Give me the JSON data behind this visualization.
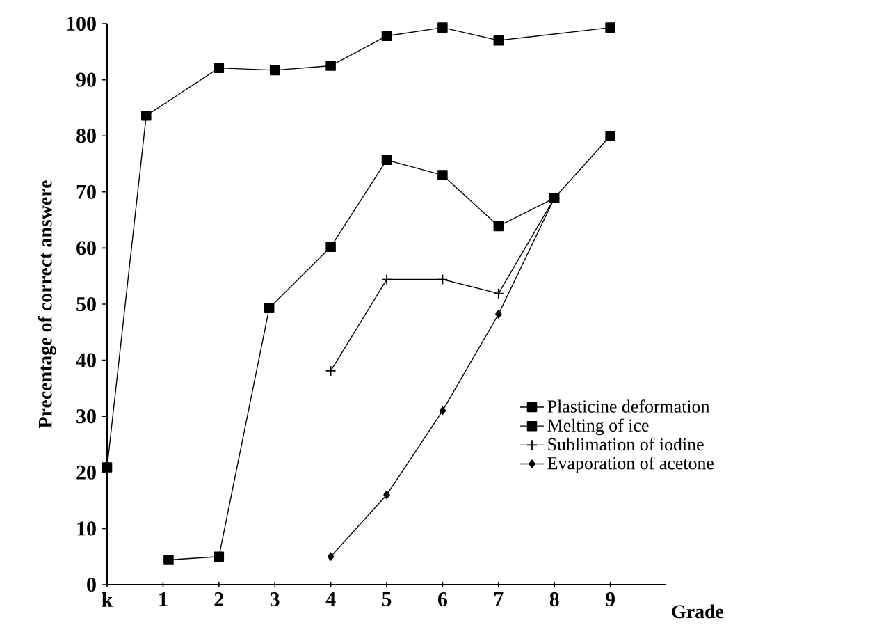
{
  "chart_data": {
    "type": "line",
    "xlabel": "Grade",
    "ylabel": "Precentage of correct answere",
    "xlim": [
      0,
      10
    ],
    "ylim": [
      0,
      100
    ],
    "xticks": [
      {
        "value": 0,
        "label": "k"
      },
      1,
      2,
      3,
      4,
      5,
      6,
      7,
      8,
      9
    ],
    "yticks": [
      0,
      10,
      20,
      30,
      40,
      50,
      60,
      70,
      80,
      90,
      100
    ],
    "legend": "right",
    "grid": false,
    "series": [
      {
        "name": "Plasticine deformation",
        "color": "#000000",
        "marker": "square",
        "x": [
          0,
          0.7,
          2,
          3,
          4,
          5,
          6,
          7,
          9
        ],
        "values": [
          20.9,
          83.6,
          92.1,
          91.7,
          92.5,
          97.8,
          99.3,
          97.0,
          99.3
        ]
      },
      {
        "name": "Melting of ice",
        "color": "#000000",
        "marker": "square",
        "x": [
          1.1,
          2,
          2.9,
          4,
          5,
          6,
          7,
          8,
          9
        ],
        "values": [
          4.4,
          5.0,
          49.3,
          60.2,
          75.7,
          73.0,
          63.9,
          68.9,
          80.0
        ]
      },
      {
        "name": "Sublimation of iodine",
        "color": "#000000",
        "marker": "cross",
        "x": [
          4,
          5,
          6,
          7,
          8
        ],
        "values": [
          38.1,
          54.4,
          54.4,
          51.9,
          68.9
        ]
      },
      {
        "name": "Evaporation of acetone",
        "color": "#000000",
        "marker": "diamond",
        "x": [
          4,
          5,
          6,
          7,
          8
        ],
        "values": [
          5.0,
          16.0,
          31.0,
          48.2,
          68.9
        ]
      }
    ]
  }
}
